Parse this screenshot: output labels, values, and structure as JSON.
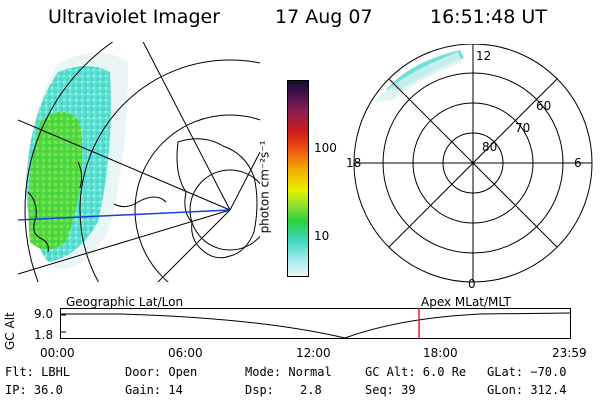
{
  "header": {
    "instrument": "Ultraviolet Imager",
    "date": "17 Aug 07",
    "time": "16:51:48 UT"
  },
  "colorbar": {
    "unit_label": "photon cm⁻²s⁻¹",
    "ticks": [
      "100",
      "10"
    ]
  },
  "polar_plot": {
    "mlt_labels": [
      "12",
      "18",
      "6",
      "0"
    ],
    "lat_labels": [
      "60",
      "70",
      "80"
    ]
  },
  "orbit": {
    "left_title": "Geographic Lat/Lon",
    "right_title": "Apex MLat/MLT",
    "y_axis_label": "GC Alt",
    "y_ticks": [
      "9.0",
      "1.8"
    ],
    "x_ticks": [
      "00:00",
      "06:00",
      "12:00",
      "18:00",
      "23:59"
    ],
    "current_time_fraction": 0.703
  },
  "status": {
    "row1": {
      "flt": "Flt: LBHL",
      "door": "Door: Open",
      "mode": "Mode: Normal",
      "gc_alt": "GC Alt: 6.0 Re",
      "glat": "GLat: −70.0"
    },
    "row2": {
      "ip": "IP: 36.0",
      "gain": "Gain: 14",
      "dsp_label": "Dsp:",
      "dsp_value": "2.8",
      "seq": "Seq: 39",
      "glon": "GLon: 312.4"
    }
  },
  "colors": {
    "aurora_green": "#44dd44",
    "aurora_cyan": "#55e0d8",
    "trace_blue": "#1a3fd6",
    "time_marker": "#e02020"
  }
}
